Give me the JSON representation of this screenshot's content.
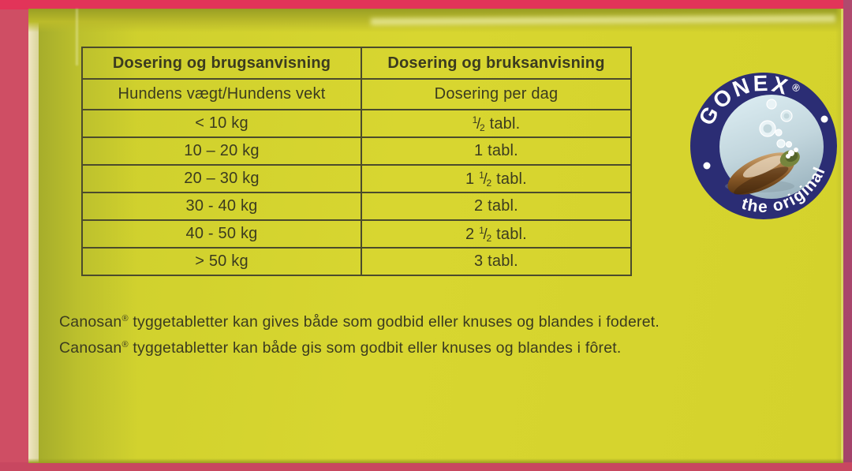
{
  "photo": {
    "description": "Photograph of a yellow-green Canosan tablets box on a pink surface",
    "background_pink": "#cf4e64",
    "background_pink_top": "#e23459",
    "background_pink_right": "#aa4467",
    "box_yellow": "#d6d42d",
    "print_color": "#3b3b1f"
  },
  "table": {
    "headers_row1": [
      "Dosering og brugsanvisning",
      "Dosering og bruksanvisning"
    ],
    "headers_row2": [
      "Hundens vægt/Hundens vekt",
      "Dosering per dag"
    ],
    "rows": [
      {
        "weight": "< 10 kg",
        "dose_whole": "",
        "dose_frac": "1/2",
        "dose_unit": "tabl."
      },
      {
        "weight": "10 – 20 kg",
        "dose_whole": "1",
        "dose_frac": "",
        "dose_unit": "tabl."
      },
      {
        "weight": "20 – 30 kg",
        "dose_whole": "1",
        "dose_frac": "1/2",
        "dose_unit": "tabl."
      },
      {
        "weight": "30 - 40 kg",
        "dose_whole": "2",
        "dose_frac": "",
        "dose_unit": "tabl."
      },
      {
        "weight": "40 - 50 kg",
        "dose_whole": "2",
        "dose_frac": "1/2",
        "dose_unit": "tabl."
      },
      {
        "weight": "> 50 kg",
        "dose_whole": "3",
        "dose_frac": "",
        "dose_unit": "tabl."
      }
    ]
  },
  "footer": {
    "lines": [
      {
        "brand": "Canosan",
        "reg": "®",
        "text": " tyggetabletter kan gives både som godbid eller knuses og blandes i foderet."
      },
      {
        "brand": "Canosan",
        "reg": "®",
        "text": " tyggetabletter kan både gis som godbit eller knuses og blandes i fôret."
      }
    ]
  },
  "logo": {
    "brand": "GONEX",
    "reg": "®",
    "tagline": "the original",
    "ring_color": "#2b2d74",
    "inner_top_color": "#dcedf2",
    "inner_bottom_color": "#9fb7c2",
    "shell_brown": "#8a5a28",
    "shell_green_tip": "#76853d"
  }
}
